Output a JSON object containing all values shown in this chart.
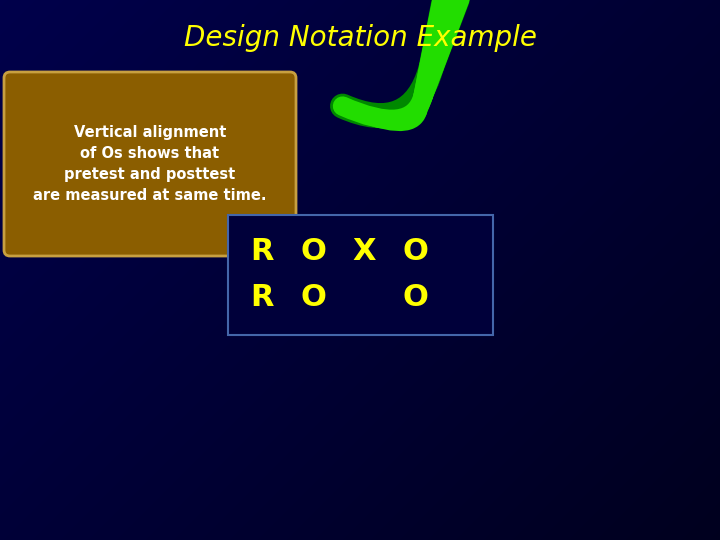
{
  "title": "Design Notation Example",
  "title_color": "#FFFF00",
  "title_fontsize": 20,
  "bg_color": "#000060",
  "callout_text": "Vertical alignment\nof Os shows that\npretest and posttest\nare measured at same time.",
  "callout_bg": "#8B5E00",
  "callout_text_color": "#FFFFFF",
  "callout_border": "#C8A040",
  "callout_fontsize": 10.5,
  "table_bg": "#00003A",
  "table_border": "#4466AA",
  "row1": [
    "R",
    "O",
    "X",
    "O"
  ],
  "row2": [
    "R",
    "O",
    "",
    "O"
  ],
  "letter_color": "#FFFF00",
  "letter_fontsize": 22,
  "arrow_color": "#22DD00",
  "arrow_dark": "#008800"
}
